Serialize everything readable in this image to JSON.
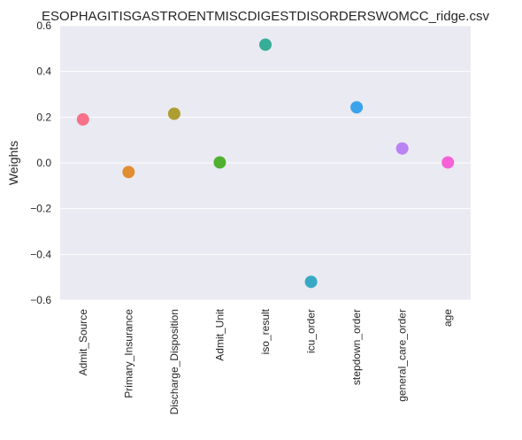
{
  "chart_data": {
    "type": "scatter",
    "title": "ESOPHAGITISGASTROENTMISCDIGESTDISORDERSWOMCC_ridge.csv",
    "xlabel": "",
    "ylabel": "Weights",
    "ylim": [
      -0.6,
      0.6
    ],
    "yticks": [
      0.6,
      0.4,
      0.2,
      0.0,
      -0.2,
      -0.4,
      -0.6
    ],
    "ytick_labels": [
      "0.6",
      "0.4",
      "0.2",
      "0.0",
      "−0.2",
      "−0.4",
      "−0.6"
    ],
    "grid": true,
    "categories": [
      "Admit_Source",
      "Primary_Insurance",
      "Discharge_Disposition",
      "Admit_Unit",
      "iso_result",
      "icu_order",
      "stepdown_order",
      "general_care_order",
      "age"
    ],
    "values": [
      0.19,
      -0.04,
      0.215,
      0.002,
      0.517,
      -0.52,
      0.243,
      0.063,
      0.002
    ],
    "colors": [
      "#f77189",
      "#e18e33",
      "#ae9d31",
      "#50b131",
      "#36ad97",
      "#38a9c5",
      "#3ba3ec",
      "#bb82f4",
      "#f562d8"
    ],
    "background_color": "#eaeaf2"
  }
}
